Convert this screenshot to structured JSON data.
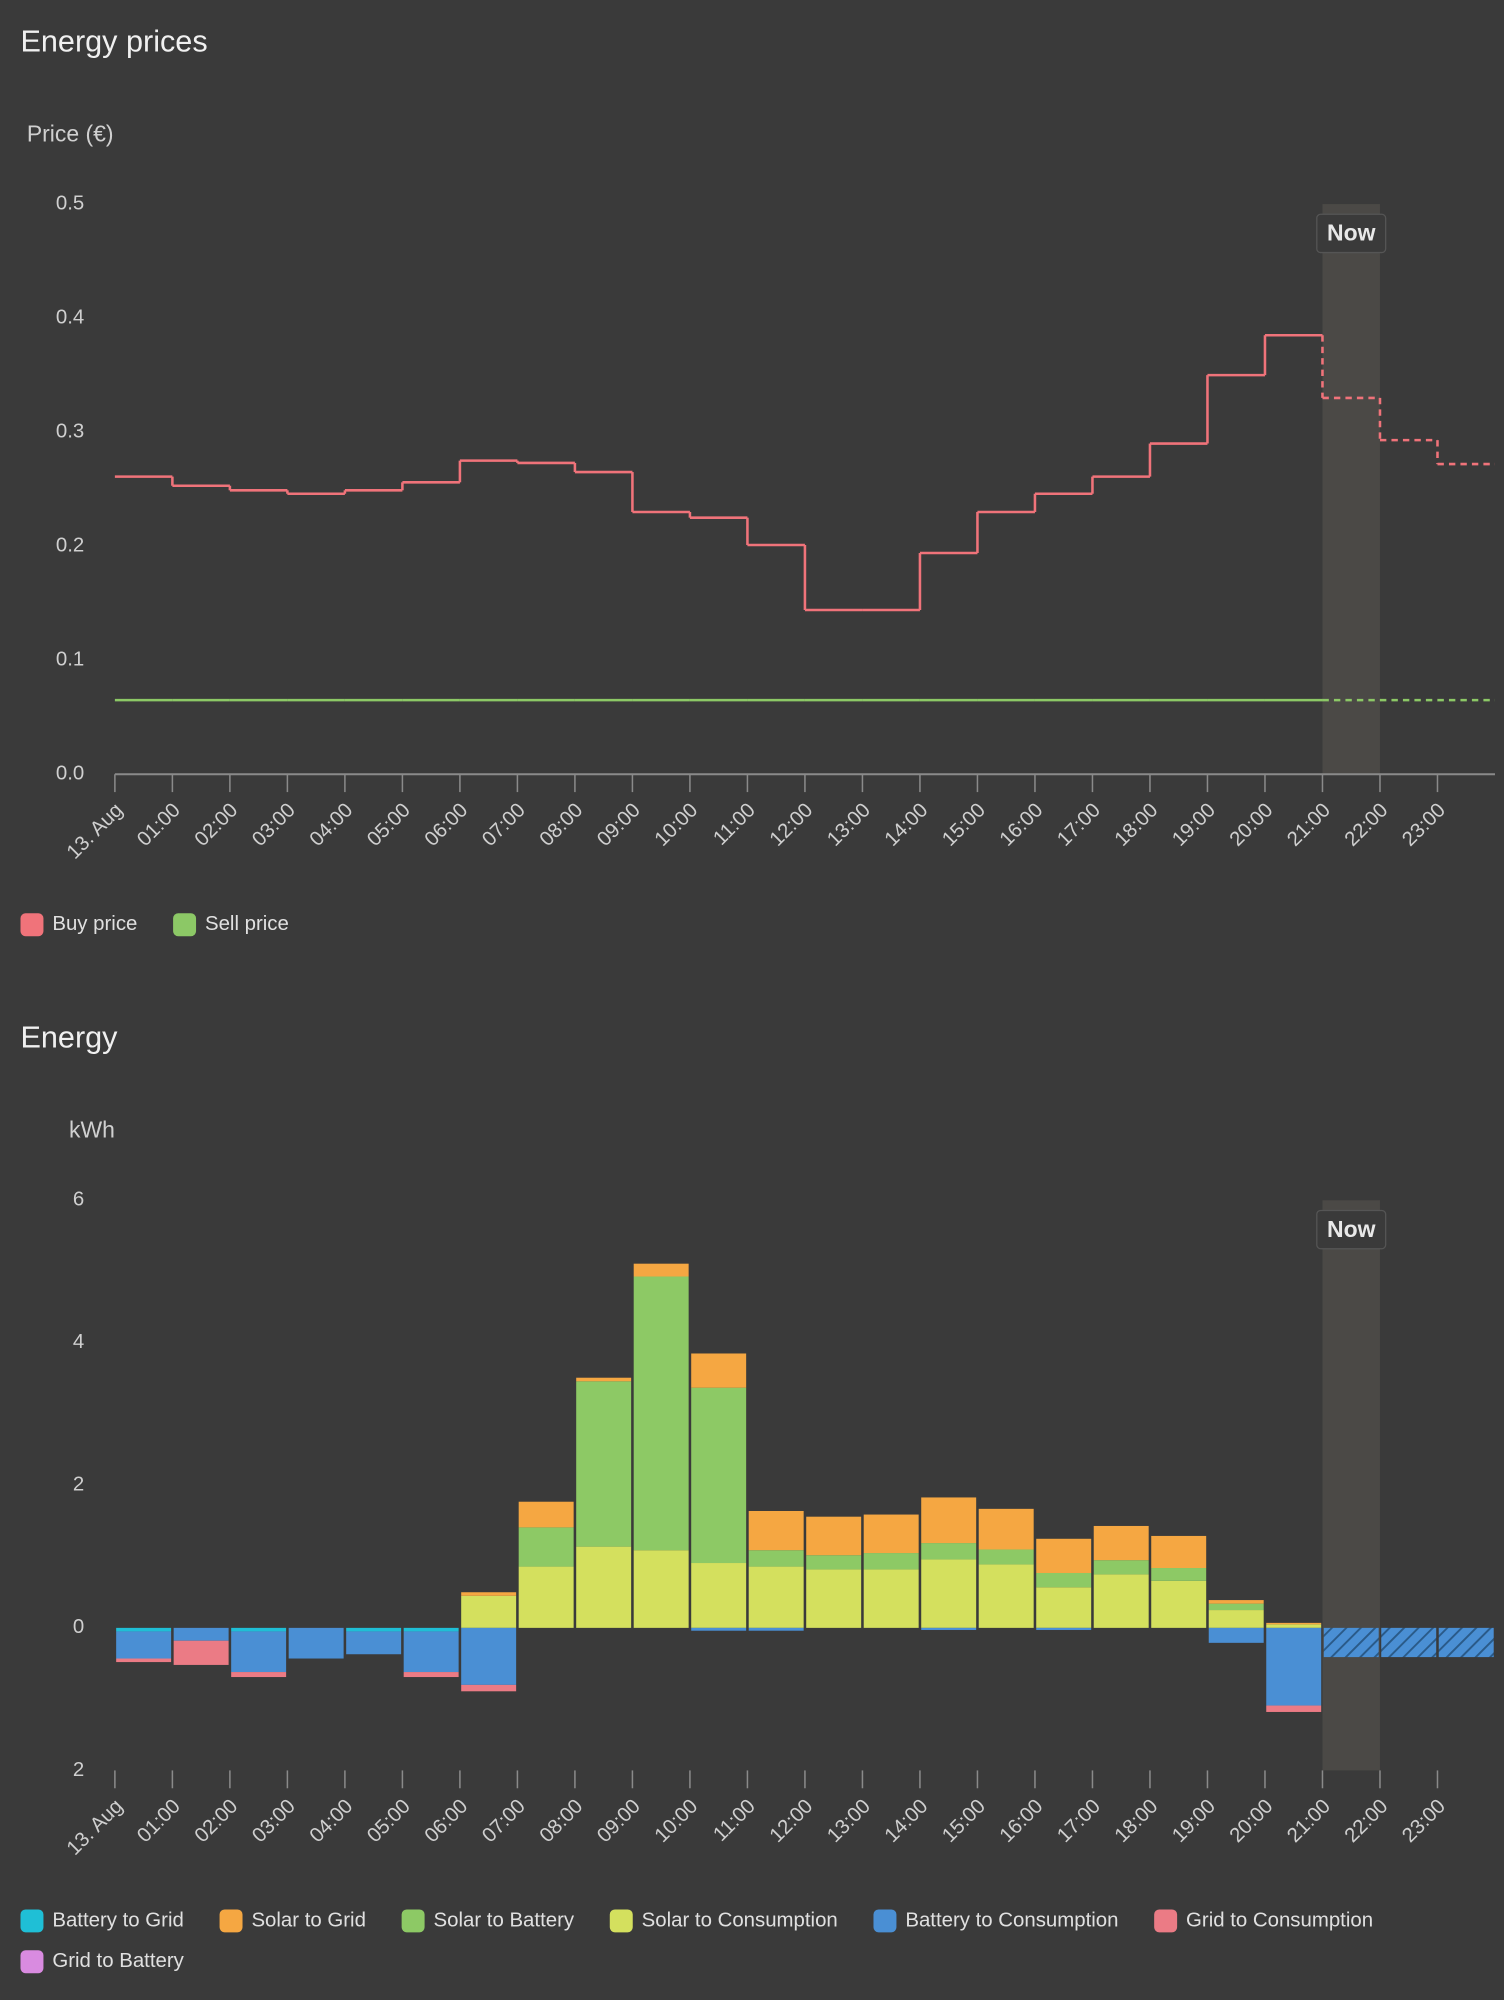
{
  "chart_data": [
    {
      "type": "step",
      "title": "Energy prices",
      "y_label": "Price (€)",
      "categories": [
        "13. Aug",
        "01:00",
        "02:00",
        "03:00",
        "04:00",
        "05:00",
        "06:00",
        "07:00",
        "08:00",
        "09:00",
        "10:00",
        "11:00",
        "12:00",
        "13:00",
        "14:00",
        "15:00",
        "16:00",
        "17:00",
        "18:00",
        "19:00",
        "20:00",
        "21:00",
        "22:00",
        "23:00"
      ],
      "series": [
        {
          "name": "Buy price",
          "color": "#f0737a",
          "values": [
            0.261,
            0.253,
            0.249,
            0.246,
            0.249,
            0.256,
            0.275,
            0.273,
            0.265,
            0.23,
            0.225,
            0.201,
            0.144,
            0.144,
            0.194,
            0.23,
            0.246,
            0.261,
            0.29,
            0.35,
            0.385,
            0.33,
            0.293,
            0.272
          ]
        },
        {
          "name": "Sell price",
          "color": "#8cc866",
          "values": [
            0.065,
            0.065,
            0.065,
            0.065,
            0.065,
            0.065,
            0.065,
            0.065,
            0.065,
            0.065,
            0.065,
            0.065,
            0.065,
            0.065,
            0.065,
            0.065,
            0.065,
            0.065,
            0.065,
            0.065,
            0.065,
            0.065,
            0.065,
            0.065
          ]
        }
      ],
      "ylim": [
        0,
        0.5
      ],
      "yticks": [
        {
          "value": 0,
          "label": "0.0"
        },
        0.1,
        0.2,
        0.3,
        0.4,
        0.5
      ],
      "now": {
        "label": "Now",
        "index": 21
      }
    },
    {
      "type": "stacked_bar",
      "title": "Energy",
      "y_label": "kWh",
      "categories": [
        "13. Aug",
        "01:00",
        "02:00",
        "03:00",
        "04:00",
        "05:00",
        "06:00",
        "07:00",
        "08:00",
        "09:00",
        "10:00",
        "11:00",
        "12:00",
        "13:00",
        "14:00",
        "15:00",
        "16:00",
        "17:00",
        "18:00",
        "19:00",
        "20:00",
        "21:00",
        "22:00",
        "23:00"
      ],
      "series": [
        {
          "name": "Battery to Grid",
          "color": "#1fbfd6",
          "values": [
            -0.05,
            0,
            -0.05,
            0,
            -0.05,
            -0.05,
            0,
            0,
            0,
            0,
            0,
            0,
            0,
            0,
            0,
            0,
            0,
            0,
            0,
            0,
            0,
            0,
            0,
            0
          ]
        },
        {
          "name": "Solar to Grid",
          "color": "#f5a742",
          "values": [
            0,
            0,
            0,
            0,
            0,
            0,
            0.05,
            0.36,
            0.05,
            0.18,
            0.48,
            0.55,
            0.54,
            0.54,
            0.64,
            0.57,
            0.48,
            0.48,
            0.45,
            0.05,
            0.02,
            0,
            0,
            0
          ]
        },
        {
          "name": "Solar to Battery",
          "color": "#8dc965",
          "values": [
            0,
            0,
            0,
            0,
            0,
            0,
            0,
            0.55,
            2.32,
            3.84,
            2.46,
            0.23,
            0.2,
            0.23,
            0.23,
            0.21,
            0.2,
            0.2,
            0.18,
            0.09,
            0,
            0,
            0,
            0
          ]
        },
        {
          "name": "Solar to Consumption",
          "color": "#d4e05e",
          "values": [
            0,
            0,
            0,
            0,
            0,
            0,
            0.45,
            0.86,
            1.14,
            1.09,
            0.91,
            0.86,
            0.82,
            0.82,
            0.96,
            0.89,
            0.57,
            0.75,
            0.66,
            0.25,
            0.05,
            0,
            0,
            0
          ]
        },
        {
          "name": "Battery to Consumption",
          "color": "#4a8fd4",
          "values": [
            -0.38,
            -0.18,
            -0.57,
            -0.43,
            -0.32,
            -0.57,
            -0.8,
            0,
            0,
            0,
            -0.04,
            -0.04,
            0,
            0,
            -0.03,
            0,
            -0.03,
            0,
            0,
            -0.21,
            -1.09,
            -0.41,
            -0.41,
            -0.41
          ]
        },
        {
          "name": "Grid to Consumption",
          "color": "#eb7b85",
          "values": [
            -0.05,
            -0.34,
            -0.07,
            0,
            0,
            -0.07,
            -0.09,
            0,
            0,
            0,
            0,
            0,
            0,
            0,
            0,
            0,
            0,
            0,
            0,
            0,
            -0.09,
            0,
            0,
            0
          ]
        },
        {
          "name": "Grid to Battery",
          "color": "#d98be0",
          "values": [
            0,
            0,
            0,
            0,
            0,
            0,
            0,
            0,
            0,
            0,
            0,
            0,
            0,
            0,
            0,
            0,
            0,
            0,
            0,
            0,
            0,
            0,
            0,
            0
          ]
        }
      ],
      "ylim": [
        -2,
        6
      ],
      "yticks": [
        {
          "value": -2,
          "label": "2"
        },
        0,
        2,
        4,
        6
      ],
      "now": {
        "label": "Now",
        "index": 21
      }
    }
  ]
}
